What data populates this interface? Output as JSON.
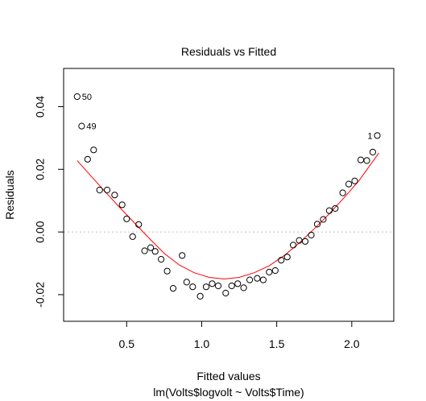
{
  "chart_data": {
    "type": "scatter",
    "title": "Residuals vs Fitted",
    "xlabel": "Fitted values",
    "subtitle": "lm(Volts$logvolt ~ Volts$Time)",
    "ylabel": "Residuals",
    "xlim": [
      0.08,
      2.28
    ],
    "ylim": [
      -0.0285,
      0.0522
    ],
    "x_ticks": [
      {
        "value": 0.5,
        "label": "0.5"
      },
      {
        "value": 1.0,
        "label": "1.0"
      },
      {
        "value": 1.5,
        "label": "1.5"
      },
      {
        "value": 2.0,
        "label": "2.0"
      }
    ],
    "y_ticks": [
      {
        "value": -0.02,
        "label": "-0.02"
      },
      {
        "value": 0.0,
        "label": "0.00"
      },
      {
        "value": 0.02,
        "label": "0.02"
      },
      {
        "value": 0.04,
        "label": "0.04"
      }
    ],
    "zero_line": true,
    "grid": false,
    "colors": {
      "points": "#000000",
      "smooth": "#ff0000",
      "zero_line": "#bebebe"
    },
    "points": [
      {
        "x": 0.17,
        "y": 0.0432
      },
      {
        "x": 0.2,
        "y": 0.0338
      },
      {
        "x": 0.24,
        "y": 0.0232
      },
      {
        "x": 0.28,
        "y": 0.0262
      },
      {
        "x": 0.32,
        "y": 0.0134
      },
      {
        "x": 0.37,
        "y": 0.0134
      },
      {
        "x": 0.42,
        "y": 0.0118
      },
      {
        "x": 0.47,
        "y": 0.0087
      },
      {
        "x": 0.5,
        "y": 0.0042
      },
      {
        "x": 0.54,
        "y": -0.0015
      },
      {
        "x": 0.58,
        "y": 0.0024
      },
      {
        "x": 0.62,
        "y": -0.006
      },
      {
        "x": 0.66,
        "y": -0.005
      },
      {
        "x": 0.69,
        "y": -0.0062
      },
      {
        "x": 0.73,
        "y": -0.0087
      },
      {
        "x": 0.77,
        "y": -0.0125
      },
      {
        "x": 0.81,
        "y": -0.018
      },
      {
        "x": 0.87,
        "y": -0.0075
      },
      {
        "x": 0.9,
        "y": -0.016
      },
      {
        "x": 0.94,
        "y": -0.0175
      },
      {
        "x": 0.99,
        "y": -0.0205
      },
      {
        "x": 1.03,
        "y": -0.0175
      },
      {
        "x": 1.07,
        "y": -0.0165
      },
      {
        "x": 1.11,
        "y": -0.0172
      },
      {
        "x": 1.16,
        "y": -0.0195
      },
      {
        "x": 1.2,
        "y": -0.0172
      },
      {
        "x": 1.24,
        "y": -0.0165
      },
      {
        "x": 1.28,
        "y": -0.0178
      },
      {
        "x": 1.32,
        "y": -0.0153
      },
      {
        "x": 1.37,
        "y": -0.0148
      },
      {
        "x": 1.41,
        "y": -0.0153
      },
      {
        "x": 1.45,
        "y": -0.0128
      },
      {
        "x": 1.49,
        "y": -0.0123
      },
      {
        "x": 1.53,
        "y": -0.009
      },
      {
        "x": 1.57,
        "y": -0.008
      },
      {
        "x": 1.61,
        "y": -0.0042
      },
      {
        "x": 1.65,
        "y": -0.0027
      },
      {
        "x": 1.69,
        "y": -0.003
      },
      {
        "x": 1.73,
        "y": -0.001
      },
      {
        "x": 1.77,
        "y": 0.0025
      },
      {
        "x": 1.81,
        "y": 0.004
      },
      {
        "x": 1.85,
        "y": 0.0068
      },
      {
        "x": 1.89,
        "y": 0.0075
      },
      {
        "x": 1.94,
        "y": 0.0125
      },
      {
        "x": 1.98,
        "y": 0.0153
      },
      {
        "x": 2.02,
        "y": 0.0163
      },
      {
        "x": 2.06,
        "y": 0.023
      },
      {
        "x": 2.1,
        "y": 0.0228
      },
      {
        "x": 2.14,
        "y": 0.0255
      },
      {
        "x": 2.17,
        "y": 0.0308
      }
    ],
    "point_labels": [
      {
        "x": 0.17,
        "y": 0.0432,
        "label": "50",
        "side": "right"
      },
      {
        "x": 0.2,
        "y": 0.0338,
        "label": "49",
        "side": "right"
      },
      {
        "x": 2.17,
        "y": 0.0308,
        "label": "1",
        "side": "left"
      }
    ],
    "smooth": [
      {
        "x": 0.17,
        "y": 0.0228
      },
      {
        "x": 0.25,
        "y": 0.0185
      },
      {
        "x": 0.35,
        "y": 0.0132
      },
      {
        "x": 0.45,
        "y": 0.008
      },
      {
        "x": 0.55,
        "y": 0.003
      },
      {
        "x": 0.65,
        "y": -0.002
      },
      {
        "x": 0.75,
        "y": -0.0068
      },
      {
        "x": 0.85,
        "y": -0.0105
      },
      {
        "x": 0.95,
        "y": -0.013
      },
      {
        "x": 1.05,
        "y": -0.0145
      },
      {
        "x": 1.15,
        "y": -0.015
      },
      {
        "x": 1.25,
        "y": -0.0145
      },
      {
        "x": 1.35,
        "y": -0.013
      },
      {
        "x": 1.45,
        "y": -0.0108
      },
      {
        "x": 1.55,
        "y": -0.0075
      },
      {
        "x": 1.65,
        "y": -0.0035
      },
      {
        "x": 1.75,
        "y": 0.001
      },
      {
        "x": 1.85,
        "y": 0.0058
      },
      {
        "x": 1.95,
        "y": 0.011
      },
      {
        "x": 2.05,
        "y": 0.0165
      },
      {
        "x": 2.18,
        "y": 0.0252
      }
    ]
  }
}
